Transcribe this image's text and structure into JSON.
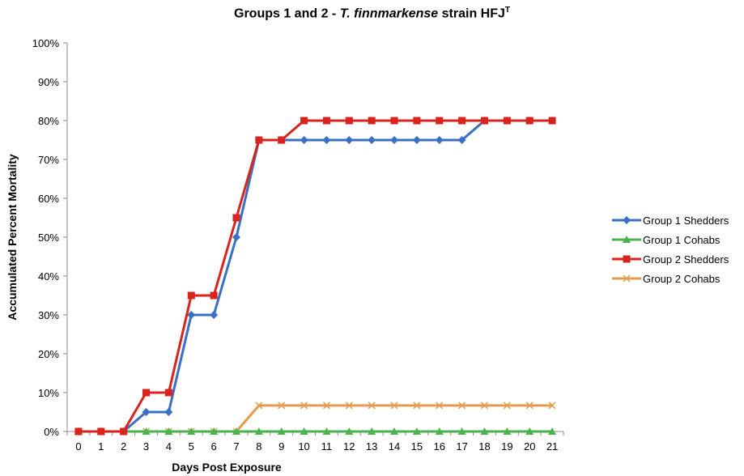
{
  "chart_data": {
    "type": "line",
    "title": {
      "prefix": "Groups 1 and 2 - ",
      "species": "T. finnmarkense",
      "mid": " strain HFJ",
      "superscript": "T"
    },
    "xlabel": "Days Post Exposure",
    "ylabel": "Accumulated Percent Mortality",
    "x": [
      0,
      1,
      2,
      3,
      4,
      5,
      6,
      7,
      8,
      9,
      10,
      11,
      12,
      13,
      14,
      15,
      16,
      17,
      18,
      19,
      20,
      21
    ],
    "ylim": [
      0,
      100
    ],
    "yticks": [
      0,
      10,
      20,
      30,
      40,
      50,
      60,
      70,
      80,
      90,
      100
    ],
    "ytick_suffix": "%",
    "grid": false,
    "legend_position": "right",
    "series": [
      {
        "name": "Group 1 Shedders",
        "color": "#3a6fc4",
        "marker": "diamond",
        "values": [
          0,
          0,
          0,
          5,
          5,
          30,
          30,
          50,
          75,
          75,
          75,
          75,
          75,
          75,
          75,
          75,
          75,
          75,
          80,
          80,
          80,
          80
        ]
      },
      {
        "name": "Group 1 Cohabs",
        "color": "#4bb34b",
        "marker": "triangle",
        "values": [
          0,
          0,
          0,
          0,
          0,
          0,
          0,
          0,
          0,
          0,
          0,
          0,
          0,
          0,
          0,
          0,
          0,
          0,
          0,
          0,
          0,
          0
        ]
      },
      {
        "name": "Group 2 Shedders",
        "color": "#d9231d",
        "marker": "square",
        "values": [
          0,
          0,
          0,
          10,
          10,
          35,
          35,
          55,
          75,
          75,
          80,
          80,
          80,
          80,
          80,
          80,
          80,
          80,
          80,
          80,
          80,
          80
        ]
      },
      {
        "name": "Group 2 Cohabs",
        "color": "#e59a4e",
        "marker": "x",
        "values": [
          0,
          0,
          0,
          0,
          0,
          0,
          0,
          0,
          6.7,
          6.7,
          6.7,
          6.7,
          6.7,
          6.7,
          6.7,
          6.7,
          6.7,
          6.7,
          6.7,
          6.7,
          6.7,
          6.7
        ]
      }
    ]
  }
}
